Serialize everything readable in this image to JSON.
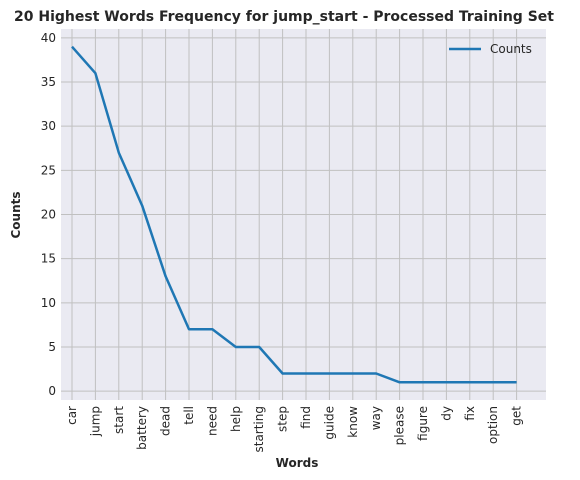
{
  "chart_data": {
    "type": "line",
    "title": "20 Highest Words Frequency for jump_start - Processed Training Set",
    "xlabel": "Words",
    "ylabel": "Counts",
    "categories": [
      "car",
      "jump",
      "start",
      "battery",
      "dead",
      "tell",
      "need",
      "help",
      "starting",
      "step",
      "find",
      "guide",
      "know",
      "way",
      "please",
      "figure",
      "dy",
      "fix",
      "option",
      "get"
    ],
    "series": [
      {
        "name": "Counts",
        "values": [
          39,
          36,
          27,
          21,
          13,
          7,
          7,
          5,
          5,
          2,
          2,
          2,
          2,
          2,
          1,
          1,
          1,
          1,
          1,
          1
        ],
        "color": "#1f77b4"
      }
    ],
    "ylim": [
      -1,
      41
    ],
    "yticks": [
      "0",
      "5",
      "10",
      "15",
      "20",
      "25",
      "30",
      "35",
      "40"
    ],
    "grid": true,
    "legend_position": "top-right",
    "background_color": "#eaeaf2",
    "grid_color": "#c0c0c0"
  }
}
